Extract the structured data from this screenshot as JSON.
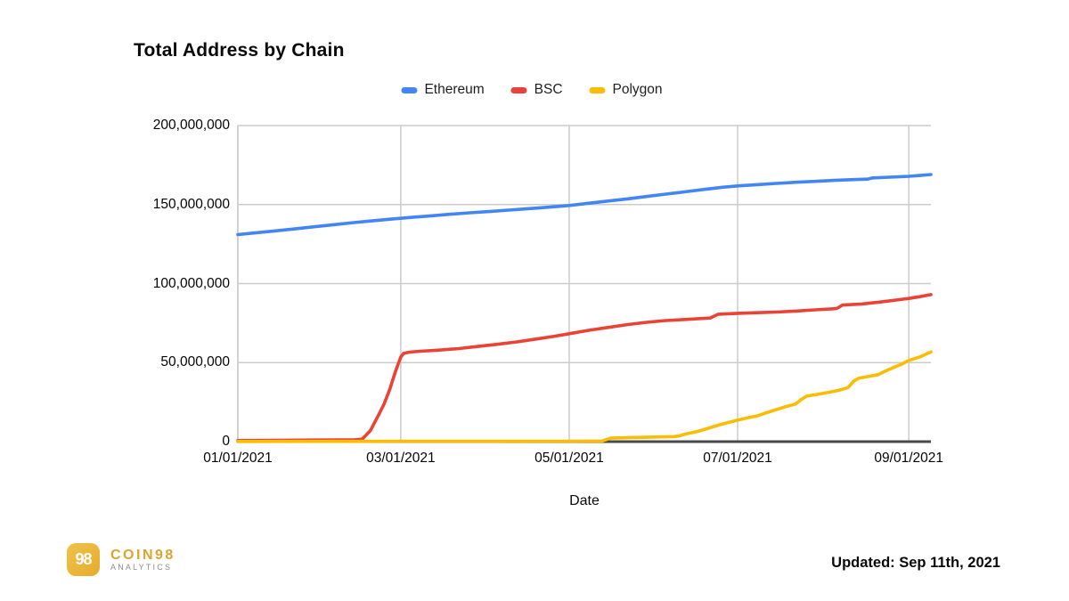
{
  "header": {
    "title": "Total Address by Chain"
  },
  "chart_data": {
    "type": "line",
    "title": "Total Address by Chain",
    "xlabel": "Date",
    "ylabel": "",
    "unit": "total addresses (series values stored in millions)",
    "x_unit": "days since 01/01/2021",
    "grid": true,
    "legend_position": "top-center",
    "xlim": [
      0,
      251
    ],
    "ylim": [
      0,
      200
    ],
    "x_ticks": [
      {
        "day": 0,
        "label": "01/01/2021"
      },
      {
        "day": 59,
        "label": "03/01/2021"
      },
      {
        "day": 120,
        "label": "05/01/2021"
      },
      {
        "day": 181,
        "label": "07/01/2021"
      },
      {
        "day": 243,
        "label": "09/01/2021"
      }
    ],
    "y_ticks": [
      {
        "value": 0,
        "label": "0"
      },
      {
        "value": 50,
        "label": "50,000,000"
      },
      {
        "value": 100,
        "label": "100,000,000"
      },
      {
        "value": 150,
        "label": "150,000,000"
      },
      {
        "value": 200,
        "label": "200,000,000"
      }
    ],
    "colors": {
      "grid": "#cccccc",
      "axis": "#4a4a4a"
    },
    "series": [
      {
        "name": "Ethereum",
        "color": "#4285F4",
        "points": [
          [
            0,
            131
          ],
          [
            7,
            132.2
          ],
          [
            14,
            133.4
          ],
          [
            21,
            134.7
          ],
          [
            28,
            136
          ],
          [
            35,
            137.3
          ],
          [
            42,
            138.6
          ],
          [
            49,
            139.8
          ],
          [
            56,
            140.9
          ],
          [
            63,
            141.9
          ],
          [
            70,
            142.9
          ],
          [
            77,
            143.9
          ],
          [
            84,
            144.8
          ],
          [
            91,
            145.6
          ],
          [
            98,
            146.5
          ],
          [
            105,
            147.4
          ],
          [
            112,
            148.3
          ],
          [
            120,
            149.4
          ],
          [
            127,
            150.8
          ],
          [
            134,
            152.2
          ],
          [
            141,
            153.6
          ],
          [
            148,
            155.1
          ],
          [
            155,
            156.6
          ],
          [
            162,
            158.1
          ],
          [
            169,
            159.6
          ],
          [
            176,
            161
          ],
          [
            181,
            161.8
          ],
          [
            188,
            162.6
          ],
          [
            195,
            163.4
          ],
          [
            202,
            164.1
          ],
          [
            209,
            164.7
          ],
          [
            216,
            165.3
          ],
          [
            223,
            165.8
          ],
          [
            228,
            166.1
          ],
          [
            230,
            166.9
          ],
          [
            236,
            167.3
          ],
          [
            243,
            167.9
          ],
          [
            247,
            168.4
          ],
          [
            251,
            169
          ]
        ]
      },
      {
        "name": "BSC",
        "color": "#EA4335",
        "points": [
          [
            0,
            0.7
          ],
          [
            14,
            0.85
          ],
          [
            28,
            1
          ],
          [
            42,
            1.15
          ],
          [
            45,
            1.6
          ],
          [
            48,
            7
          ],
          [
            51,
            17
          ],
          [
            53,
            24
          ],
          [
            55,
            33
          ],
          [
            57,
            44
          ],
          [
            59,
            53.5
          ],
          [
            60,
            55.8
          ],
          [
            62,
            56.6
          ],
          [
            66,
            57.2
          ],
          [
            73,
            57.9
          ],
          [
            80,
            58.9
          ],
          [
            87,
            60.2
          ],
          [
            94,
            61.6
          ],
          [
            101,
            63.1
          ],
          [
            108,
            64.9
          ],
          [
            114,
            66.5
          ],
          [
            120,
            68.3
          ],
          [
            127,
            70.4
          ],
          [
            134,
            72.2
          ],
          [
            141,
            74
          ],
          [
            148,
            75.5
          ],
          [
            155,
            76.6
          ],
          [
            162,
            77.3
          ],
          [
            168,
            77.9
          ],
          [
            171,
            78.2
          ],
          [
            174,
            80.6
          ],
          [
            181,
            81.2
          ],
          [
            188,
            81.6
          ],
          [
            195,
            82
          ],
          [
            202,
            82.6
          ],
          [
            209,
            83.4
          ],
          [
            215,
            84
          ],
          [
            217,
            84.3
          ],
          [
            219,
            86.4
          ],
          [
            226,
            87.1
          ],
          [
            233,
            88.4
          ],
          [
            240,
            89.9
          ],
          [
            243,
            90.6
          ],
          [
            247,
            91.7
          ],
          [
            251,
            93
          ]
        ]
      },
      {
        "name": "Polygon",
        "color": "#FBBC04",
        "points": [
          [
            0,
            0.1
          ],
          [
            30,
            0.15
          ],
          [
            60,
            0.2
          ],
          [
            90,
            0.25
          ],
          [
            120,
            0.3
          ],
          [
            132,
            0.4
          ],
          [
            135,
            2.2
          ],
          [
            142,
            2.6
          ],
          [
            150,
            2.9
          ],
          [
            158,
            3.2
          ],
          [
            160,
            3.6
          ],
          [
            162,
            4.8
          ],
          [
            166,
            6.2
          ],
          [
            170,
            8.2
          ],
          [
            174,
            10.4
          ],
          [
            178,
            12.2
          ],
          [
            181,
            13.6
          ],
          [
            185,
            15.2
          ],
          [
            188,
            16.2
          ],
          [
            192,
            18.6
          ],
          [
            195,
            20.3
          ],
          [
            199,
            22.4
          ],
          [
            202,
            23.8
          ],
          [
            204,
            26.6
          ],
          [
            206,
            28.8
          ],
          [
            210,
            29.9
          ],
          [
            214,
            31.2
          ],
          [
            218,
            32.6
          ],
          [
            221,
            34.2
          ],
          [
            223,
            38.2
          ],
          [
            225,
            40.2
          ],
          [
            229,
            41.4
          ],
          [
            232,
            42.4
          ],
          [
            234,
            44.2
          ],
          [
            237,
            46.6
          ],
          [
            240,
            48.7
          ],
          [
            243,
            51.4
          ],
          [
            247,
            53.6
          ],
          [
            251,
            56.8
          ]
        ]
      }
    ]
  },
  "footer": {
    "logo": {
      "mark": "98",
      "brand": "COIN98",
      "sub": "ANALYTICS"
    },
    "updated": "Updated: Sep 11th, 2021"
  }
}
